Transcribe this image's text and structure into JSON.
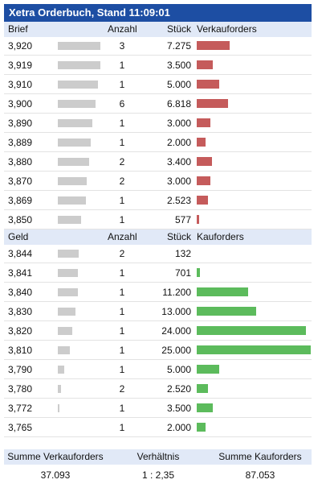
{
  "title": "Xetra Orderbuch, Stand 11:09:01",
  "sell_header": {
    "price": "Brief",
    "count": "Anzahl",
    "shares": "Stück",
    "orders": "Verkauforders"
  },
  "buy_header": {
    "price": "Geld",
    "count": "Anzahl",
    "shares": "Stück",
    "orders": "Kauforders"
  },
  "colors": {
    "title_bg": "#1d4ea3",
    "header_bg": "#e1e9f7",
    "sell_bar": "#c55b5b",
    "buy_bar": "#5cbb5c",
    "count_bar": "#cccccc"
  },
  "sell_rows": [
    {
      "price": "3,920",
      "count": "3",
      "shares": "7.275",
      "count_level": 0.95,
      "order_level": 0.291
    },
    {
      "price": "3,919",
      "count": "1",
      "shares": "3.500",
      "count_level": 0.94,
      "order_level": 0.14
    },
    {
      "price": "3,910",
      "count": "1",
      "shares": "5.000",
      "count_level": 0.89,
      "order_level": 0.2
    },
    {
      "price": "3,900",
      "count": "6",
      "shares": "6.818",
      "count_level": 0.84,
      "order_level": 0.273
    },
    {
      "price": "3,890",
      "count": "1",
      "shares": "3.000",
      "count_level": 0.76,
      "order_level": 0.12
    },
    {
      "price": "3,889",
      "count": "1",
      "shares": "2.000",
      "count_level": 0.74,
      "order_level": 0.08
    },
    {
      "price": "3,880",
      "count": "2",
      "shares": "3.400",
      "count_level": 0.7,
      "order_level": 0.136
    },
    {
      "price": "3,870",
      "count": "2",
      "shares": "3.000",
      "count_level": 0.65,
      "order_level": 0.12
    },
    {
      "price": "3,869",
      "count": "1",
      "shares": "2.523",
      "count_level": 0.63,
      "order_level": 0.101
    },
    {
      "price": "3,850",
      "count": "1",
      "shares": "577",
      "count_level": 0.51,
      "order_level": 0.023
    }
  ],
  "buy_rows": [
    {
      "price": "3,844",
      "count": "2",
      "shares": "132",
      "count_level": 0.47,
      "order_level": 0.0
    },
    {
      "price": "3,841",
      "count": "1",
      "shares": "701",
      "count_level": 0.44,
      "order_level": 0.028
    },
    {
      "price": "3,840",
      "count": "1",
      "shares": "11.200",
      "count_level": 0.44,
      "order_level": 0.448
    },
    {
      "price": "3,830",
      "count": "1",
      "shares": "13.000",
      "count_level": 0.39,
      "order_level": 0.52
    },
    {
      "price": "3,820",
      "count": "1",
      "shares": "24.000",
      "count_level": 0.32,
      "order_level": 0.96
    },
    {
      "price": "3,810",
      "count": "1",
      "shares": "25.000",
      "count_level": 0.26,
      "order_level": 1.0
    },
    {
      "price": "3,790",
      "count": "1",
      "shares": "5.000",
      "count_level": 0.14,
      "order_level": 0.2
    },
    {
      "price": "3,780",
      "count": "2",
      "shares": "2.520",
      "count_level": 0.07,
      "order_level": 0.101
    },
    {
      "price": "3,772",
      "count": "1",
      "shares": "3.500",
      "count_level": 0.03,
      "order_level": 0.14
    },
    {
      "price": "3,765",
      "count": "1",
      "shares": "2.000",
      "count_level": 0.0,
      "order_level": 0.08
    }
  ],
  "summary": {
    "labels": {
      "sell_total": "Summe Verkauforders",
      "ratio": "Verhältnis",
      "buy_total": "Summe Kauforders"
    },
    "values": {
      "sell_total": "37.093",
      "ratio": "1 : 2,35",
      "buy_total": "87.053"
    }
  }
}
